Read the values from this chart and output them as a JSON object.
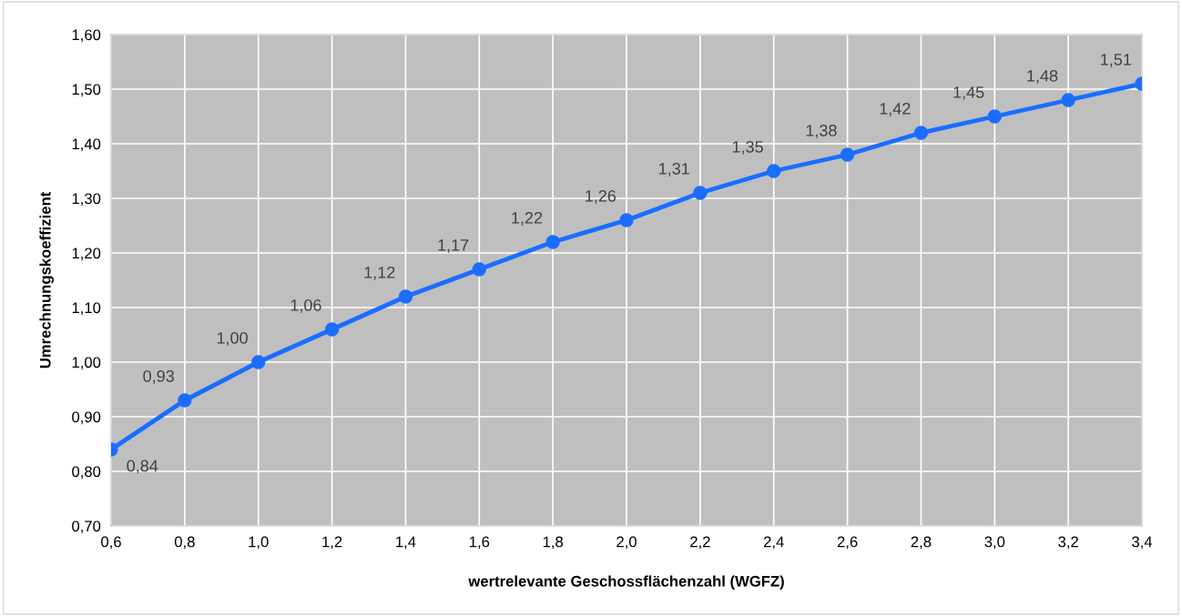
{
  "chart_data": {
    "type": "line",
    "xlabel": "wertrelevante Geschossflächenzahl (WGFZ)",
    "ylabel": "Umrechnungskoeffizient",
    "x": [
      0.6,
      0.8,
      1.0,
      1.2,
      1.4,
      1.6,
      1.8,
      2.0,
      2.2,
      2.4,
      2.6,
      2.8,
      3.0,
      3.2,
      3.4
    ],
    "series": [
      {
        "color": "#1a6dff",
        "values": [
          0.84,
          0.93,
          1.0,
          1.06,
          1.12,
          1.17,
          1.22,
          1.26,
          1.31,
          1.35,
          1.38,
          1.42,
          1.45,
          1.48,
          1.51
        ],
        "value_labels": [
          "0,84",
          "0,93",
          "1,00",
          "1,06",
          "1,12",
          "1,17",
          "1,22",
          "1,26",
          "1,31",
          "1,35",
          "1,38",
          "1,42",
          "1,45",
          "1,48",
          "1,51"
        ]
      }
    ],
    "xlim": [
      0.6,
      3.4
    ],
    "xticks": [
      {
        "value": 0.6,
        "label": "0,6"
      },
      {
        "value": 0.8,
        "label": "0,8"
      },
      {
        "value": 1.0,
        "label": "1,0"
      },
      {
        "value": 1.2,
        "label": "1,2"
      },
      {
        "value": 1.4,
        "label": "1,4"
      },
      {
        "value": 1.6,
        "label": "1,6"
      },
      {
        "value": 1.8,
        "label": "1,8"
      },
      {
        "value": 2.0,
        "label": "2,0"
      },
      {
        "value": 2.2,
        "label": "2,2"
      },
      {
        "value": 2.4,
        "label": "2,4"
      },
      {
        "value": 2.6,
        "label": "2,6"
      },
      {
        "value": 2.8,
        "label": "2,8"
      },
      {
        "value": 3.0,
        "label": "3,0"
      },
      {
        "value": 3.2,
        "label": "3,2"
      },
      {
        "value": 3.4,
        "label": "3,4"
      }
    ],
    "ylim": [
      0.7,
      1.6
    ],
    "yticks": [
      {
        "value": 0.7,
        "label": "0,70"
      },
      {
        "value": 0.8,
        "label": "0,80"
      },
      {
        "value": 0.9,
        "label": "0,90"
      },
      {
        "value": 1.0,
        "label": "1,00"
      },
      {
        "value": 1.1,
        "label": "1,10"
      },
      {
        "value": 1.2,
        "label": "1,20"
      },
      {
        "value": 1.3,
        "label": "1,30"
      },
      {
        "value": 1.4,
        "label": "1,40"
      },
      {
        "value": 1.5,
        "label": "1,50"
      },
      {
        "value": 1.6,
        "label": "1,60"
      }
    ],
    "grid": true,
    "marker": "circle",
    "line_style": "solid"
  }
}
